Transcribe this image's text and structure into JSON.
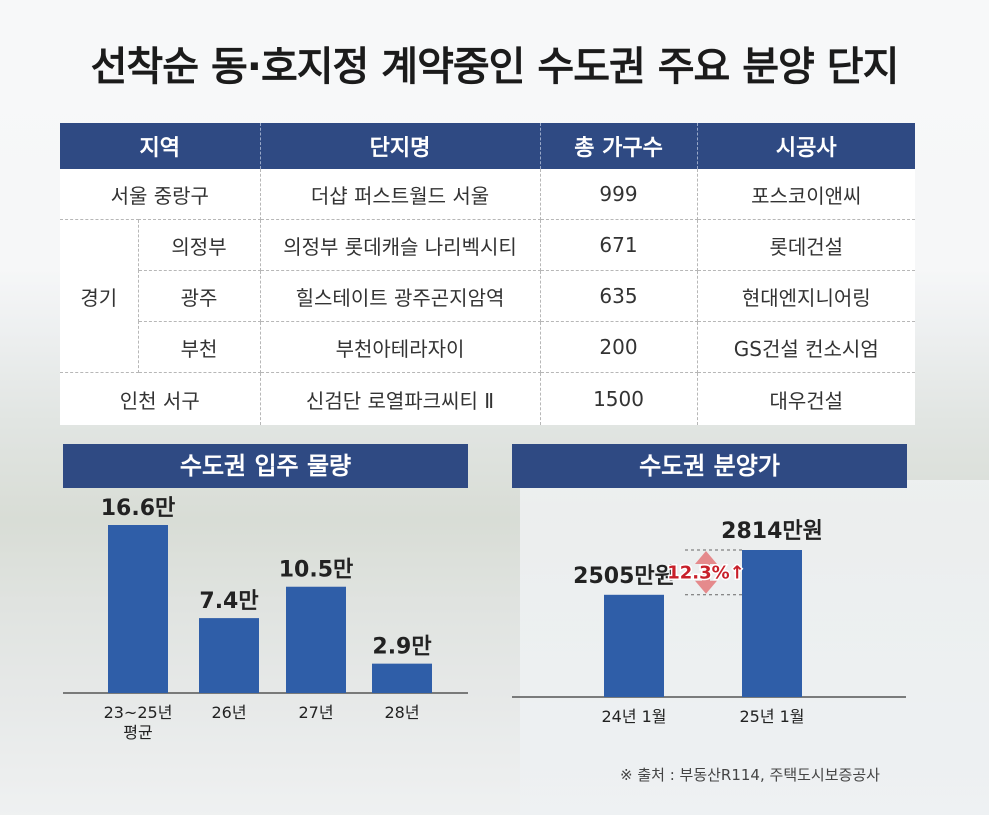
{
  "title": "선착순 동·호지정 계약중인 수도권 주요 분양 단지",
  "table": {
    "headers": [
      "지역",
      "단지명",
      "총 가구수",
      "시공사"
    ],
    "rows": [
      {
        "region": "서울 중랑구",
        "subregion": "",
        "name": "더샵 퍼스트월드 서울",
        "units": "999",
        "builder": "포스코이앤씨"
      },
      {
        "region": "경기",
        "subregion": "의정부",
        "name": "의정부 롯데캐슬 나리벡시티",
        "units": "671",
        "builder": "롯데건설"
      },
      {
        "region": "경기",
        "subregion": "광주",
        "name": "힐스테이트 광주곤지암역",
        "units": "635",
        "builder": "현대엔지니어링"
      },
      {
        "region": "경기",
        "subregion": "부천",
        "name": "부천아테라자이",
        "units": "200",
        "builder": "GS건설 컨소시엄"
      },
      {
        "region": "인천 서구",
        "subregion": "",
        "name": "신검단 로열파크씨티 Ⅱ",
        "units": "1500",
        "builder": "대우건설"
      }
    ]
  },
  "chart_data": [
    {
      "type": "bar",
      "title": "수도권 입주 물량",
      "categories": [
        "23~25년 평균",
        "26년",
        "27년",
        "28년"
      ],
      "values": [
        16.6,
        7.4,
        10.5,
        2.9
      ],
      "value_labels": [
        "16.6만",
        "7.4만",
        "10.5만",
        "2.9만"
      ],
      "ylim": [
        0,
        16.6
      ]
    },
    {
      "type": "bar",
      "title": "수도권 분양가",
      "categories": [
        "24년 1월",
        "25년 1월"
      ],
      "values": [
        2505,
        2814
      ],
      "value_labels": [
        "2505만원",
        "2814만원"
      ],
      "annotation": "12.3%↑",
      "ylim": [
        1800,
        2814
      ]
    }
  ],
  "source": "※ 출처 : 부동산R114, 주택도시보증공사",
  "colors": {
    "header_bg": "#2f4a83",
    "bar": "#2f5ea8",
    "arrow": "#e58a8c",
    "annotation": "#c8202a"
  }
}
